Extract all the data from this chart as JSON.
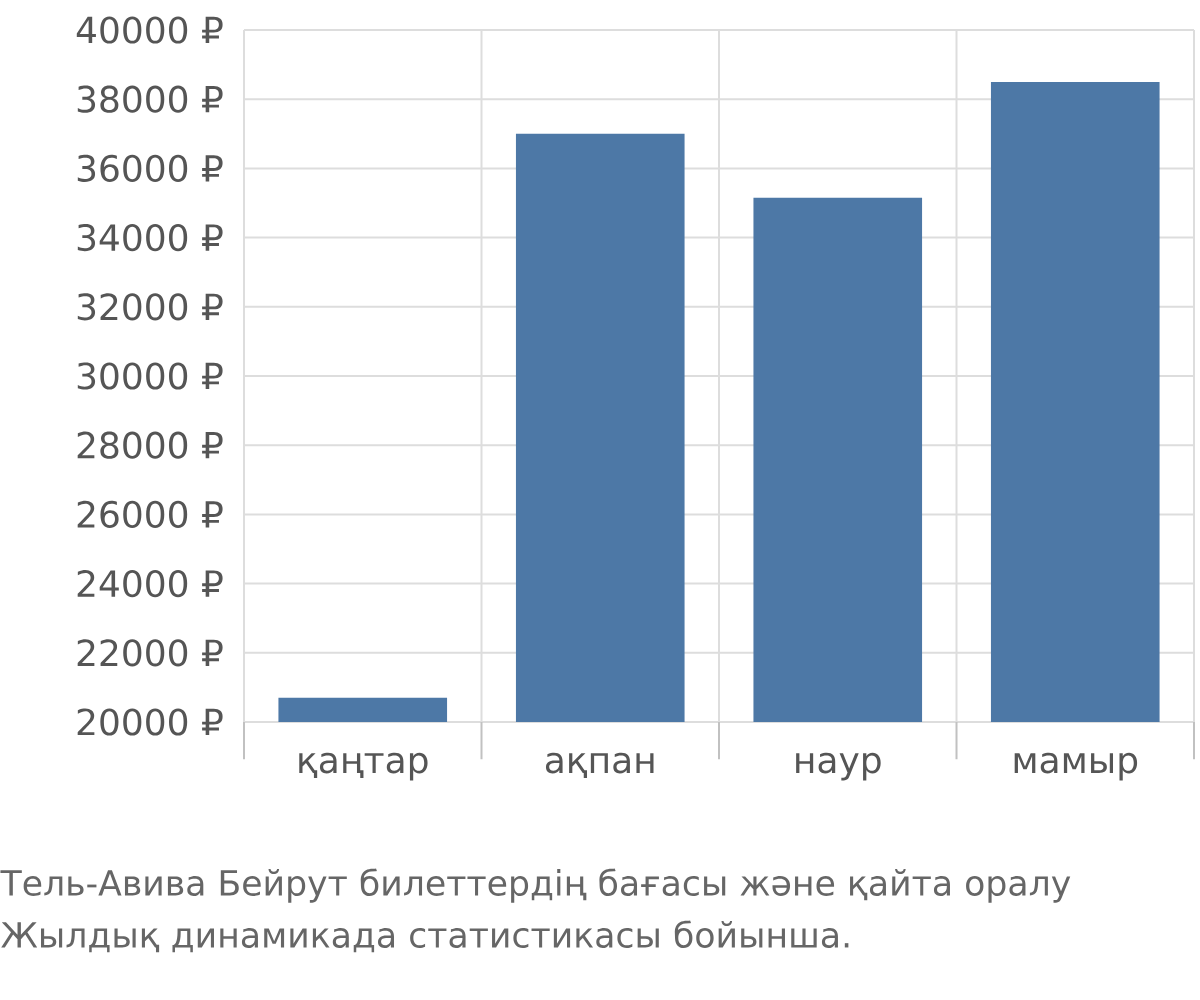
{
  "chart_data": {
    "type": "bar",
    "categories": [
      "қаңтар",
      "ақпан",
      "наур",
      "мамыр"
    ],
    "values": [
      20700,
      37000,
      35150,
      38500
    ],
    "color": "#4d78a6",
    "ylim": [
      20000,
      40000
    ],
    "yticks": [
      {
        "value": 20000,
        "label": "20000 ₽"
      },
      {
        "value": 22000,
        "label": "22000 ₽"
      },
      {
        "value": 24000,
        "label": "24000 ₽"
      },
      {
        "value": 26000,
        "label": "26000 ₽"
      },
      {
        "value": 28000,
        "label": "28000 ₽"
      },
      {
        "value": 30000,
        "label": "30000 ₽"
      },
      {
        "value": 32000,
        "label": "32000 ₽"
      },
      {
        "value": 34000,
        "label": "34000 ₽"
      },
      {
        "value": 36000,
        "label": "36000 ₽"
      },
      {
        "value": 38000,
        "label": "38000 ₽"
      },
      {
        "value": 40000,
        "label": "40000 ₽"
      }
    ],
    "grid": true,
    "annotations": [
      "Тель-Авива Бейрут билеттердің бағасы және қайта оралу",
      "Жылдық динамикада статистикасы бойынша."
    ]
  }
}
